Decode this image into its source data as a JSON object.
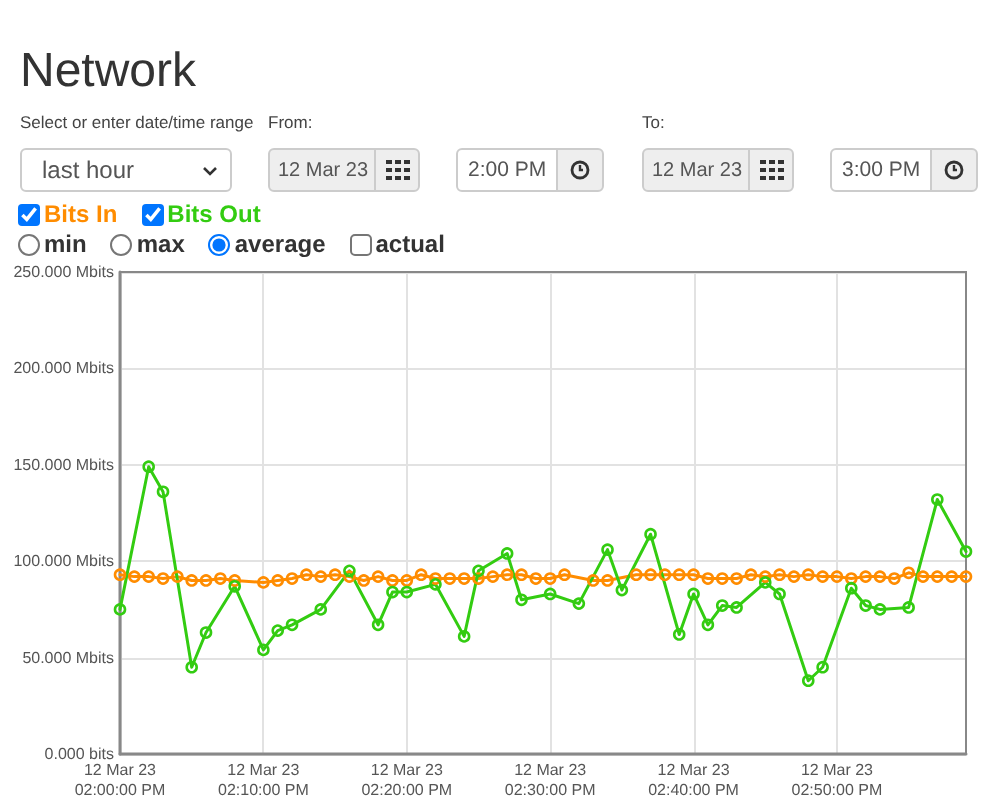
{
  "chart_data": {
    "type": "line",
    "title": "Network",
    "annotations": [
      "Select or enter date/time range",
      "last hour",
      "From:",
      "12 Mar 23",
      "2:00 PM",
      "To:",
      "12 Mar 23",
      "3:00 PM",
      "min",
      "max",
      "average",
      "actual"
    ],
    "series": [
      {
        "name": "Bits In",
        "color": "#ff8c00",
        "x": [
          "--03-12T14:00",
          "--03-12T14:01",
          "--03-12T14:02",
          "--03-12T14:03",
          "--03-12T14:04",
          "--03-12T14:05",
          "--03-12T14:06",
          "--03-12T14:07",
          "--03-12T14:08",
          "--03-12T14:10",
          "--03-12T14:11",
          "--03-12T14:12",
          "--03-12T14:13",
          "--03-12T14:14",
          "--03-12T14:15",
          "--03-12T14:16",
          "--03-12T14:17",
          "--03-12T14:18",
          "--03-12T14:19",
          "--03-12T14:20",
          "--03-12T14:21",
          "--03-12T14:22",
          "--03-12T14:23",
          "--03-12T14:24",
          "--03-12T14:25",
          "--03-12T14:26",
          "--03-12T14:27",
          "--03-12T14:28",
          "--03-12T14:29",
          "--03-12T14:30",
          "--03-12T14:31",
          "--03-12T14:33",
          "--03-12T14:34",
          "--03-12T14:36",
          "--03-12T14:37",
          "--03-12T14:38",
          "--03-12T14:39",
          "--03-12T14:40",
          "--03-12T14:41",
          "--03-12T14:42",
          "--03-12T14:43",
          "--03-12T14:44",
          "--03-12T14:45",
          "--03-12T14:46",
          "--03-12T14:47",
          "--03-12T14:48",
          "--03-12T14:49",
          "--03-12T14:50",
          "--03-12T14:51",
          "--03-12T14:52",
          "--03-12T14:53",
          "--03-12T14:54",
          "--03-12T14:55",
          "--03-12T14:56",
          "--03-12T14:57",
          "--03-12T14:58",
          "--03-12T14:59"
        ],
        "values": [
          93,
          92,
          92,
          91,
          92,
          90,
          90,
          91,
          90,
          89,
          90,
          91,
          93,
          92,
          93,
          92,
          90,
          92,
          90,
          90,
          93,
          91,
          91,
          91,
          91,
          92,
          93,
          93,
          91,
          91,
          93,
          90,
          90,
          93,
          93,
          93,
          93,
          93,
          91,
          91,
          91,
          93,
          92,
          93,
          92,
          93,
          92,
          92,
          91,
          92,
          92,
          91,
          94,
          92,
          92,
          92,
          92
        ]
      },
      {
        "name": "Bits Out",
        "color": "#33cc11",
        "x": [
          "--03-12T14:00",
          "--03-12T14:02",
          "--03-12T14:03",
          "--03-12T14:05",
          "--03-12T14:06",
          "--03-12T14:08",
          "--03-12T14:10",
          "--03-12T14:11",
          "--03-12T14:12",
          "--03-12T14:14",
          "--03-12T14:16",
          "--03-12T14:18",
          "--03-12T14:19",
          "--03-12T14:20",
          "--03-12T14:22",
          "--03-12T14:24",
          "--03-12T14:25",
          "--03-12T14:27",
          "--03-12T14:28",
          "--03-12T14:30",
          "--03-12T14:32",
          "--03-12T14:34",
          "--03-12T14:35",
          "--03-12T14:37",
          "--03-12T14:39",
          "--03-12T14:40",
          "--03-12T14:41",
          "--03-12T14:42",
          "--03-12T14:43",
          "--03-12T14:45",
          "--03-12T14:46",
          "--03-12T14:48",
          "--03-12T14:49",
          "--03-12T14:51",
          "--03-12T14:52",
          "--03-12T14:53",
          "--03-12T14:55",
          "--03-12T14:57",
          "--03-12T14:59"
        ],
        "values": [
          75,
          149,
          136,
          45,
          63,
          87,
          54,
          64,
          67,
          75,
          95,
          67,
          84,
          84,
          88,
          61,
          95,
          104,
          80,
          83,
          78,
          106,
          85,
          114,
          62,
          83,
          67,
          77,
          76,
          89,
          83,
          38,
          45,
          86,
          77,
          75,
          76,
          132,
          105
        ]
      }
    ],
    "xlim": [
      "--03-12T14:00",
      "--03-12T14:59"
    ],
    "xticks": [
      {
        "value": "--03-12T14:00",
        "label": "12 Mar 23\n02:00:00 PM"
      },
      {
        "value": "--03-12T14:10",
        "label": "12 Mar 23\n02:10:00 PM"
      },
      {
        "value": "--03-12T14:20",
        "label": "12 Mar 23\n02:20:00 PM"
      },
      {
        "value": "--03-12T14:30",
        "label": "12 Mar 23\n02:30:00 PM"
      },
      {
        "value": "--03-12T14:40",
        "label": "12 Mar 23\n02:40:00 PM"
      },
      {
        "value": "--03-12T14:50",
        "label": "12 Mar 23\n02:50:00 PM"
      }
    ],
    "ylim": [
      0,
      250
    ],
    "yticks": [
      {
        "value": 0,
        "label": "0.000 bits"
      },
      {
        "value": 50,
        "label": "50.000 Mbits"
      },
      {
        "value": 100,
        "label": "100.000 Mbits"
      },
      {
        "value": 150,
        "label": "150.000 Mbits"
      },
      {
        "value": 200,
        "label": "200.000 Mbits"
      },
      {
        "value": 250,
        "label": "250.000 Mbits"
      }
    ],
    "grid": true,
    "legend": "top left",
    "marker": "circle",
    "line_style": "solid"
  }
}
